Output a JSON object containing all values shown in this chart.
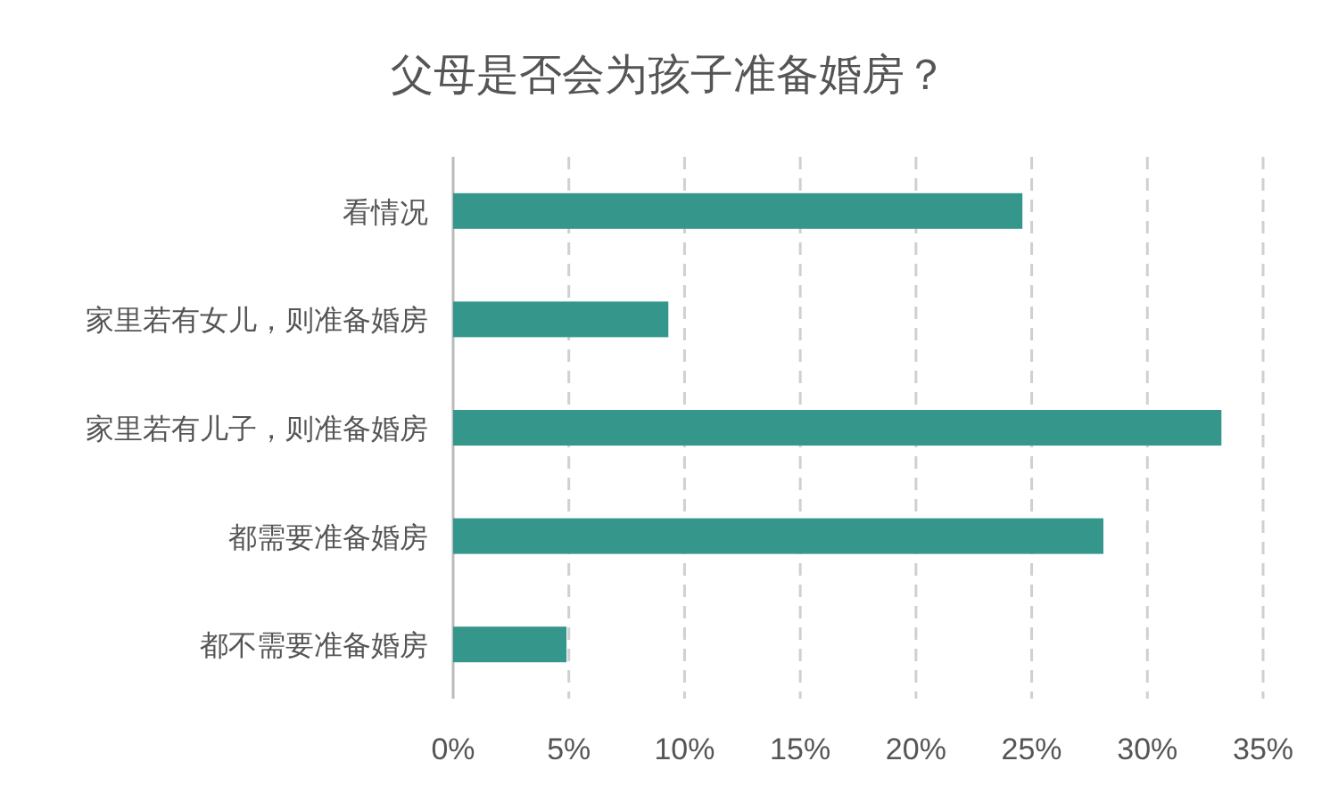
{
  "chart_data": {
    "type": "bar",
    "orientation": "horizontal",
    "title": "父母是否会为孩子准备婚房？",
    "categories": [
      "看情况",
      "家里若有女儿，则准备婚房",
      "家里若有儿子，则准备婚房",
      "都需要准备婚房",
      "都不需要准备婚房"
    ],
    "values": [
      24.6,
      9.3,
      33.2,
      28.1,
      4.9
    ],
    "color": "#35978c",
    "xlim": [
      0,
      35
    ],
    "xticks": [
      {
        "value": 0,
        "label": "0%"
      },
      {
        "value": 5,
        "label": "5%"
      },
      {
        "value": 10,
        "label": "10%"
      },
      {
        "value": 15,
        "label": "15%"
      },
      {
        "value": 20,
        "label": "20%"
      },
      {
        "value": 25,
        "label": "25%"
      },
      {
        "value": 30,
        "label": "30%"
      },
      {
        "value": 35,
        "label": "35%"
      }
    ],
    "grid": "x"
  }
}
